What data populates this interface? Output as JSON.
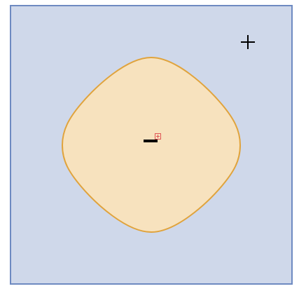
{
  "diagram": {
    "outer_region": {
      "sign": "+",
      "fill_color": "#CFD8EA",
      "border_color": "#6E8AC1"
    },
    "inner_region": {
      "shape": "rounded-square-rotated-45",
      "sign": "−",
      "fill_color": "#F7E2BE",
      "border_color": "#E0A33C"
    },
    "center_marker": {
      "icon": "small-crosshair-square-icon",
      "color": "#E05555"
    }
  }
}
